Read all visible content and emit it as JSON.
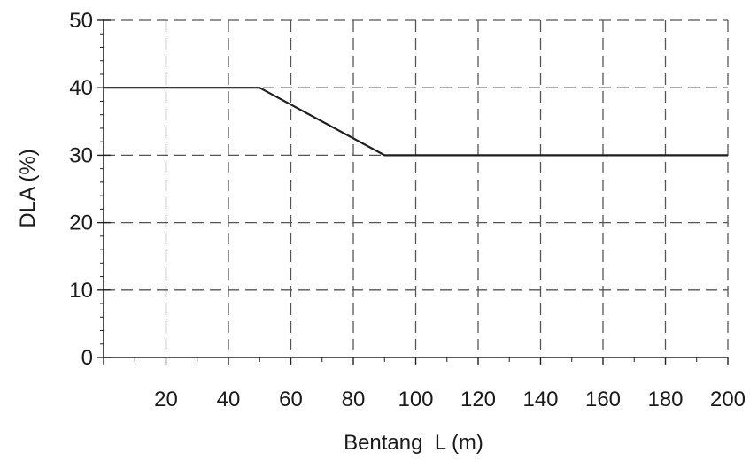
{
  "chart_data": {
    "type": "line",
    "title": "",
    "xlabel": "Bentang  L (m)",
    "ylabel": "DLA (%)",
    "xlim": [
      0,
      200
    ],
    "ylim": [
      0,
      50
    ],
    "x_ticks": [
      20,
      40,
      60,
      80,
      100,
      120,
      140,
      160,
      180,
      200
    ],
    "y_ticks": [
      0,
      10,
      20,
      30,
      40,
      50
    ],
    "grid": true,
    "series": [
      {
        "x": [
          0,
          50,
          90,
          200
        ],
        "y": [
          40,
          40,
          30,
          30
        ]
      }
    ],
    "colors": {
      "line": "#1f1f1f",
      "grid": "#555555"
    }
  }
}
